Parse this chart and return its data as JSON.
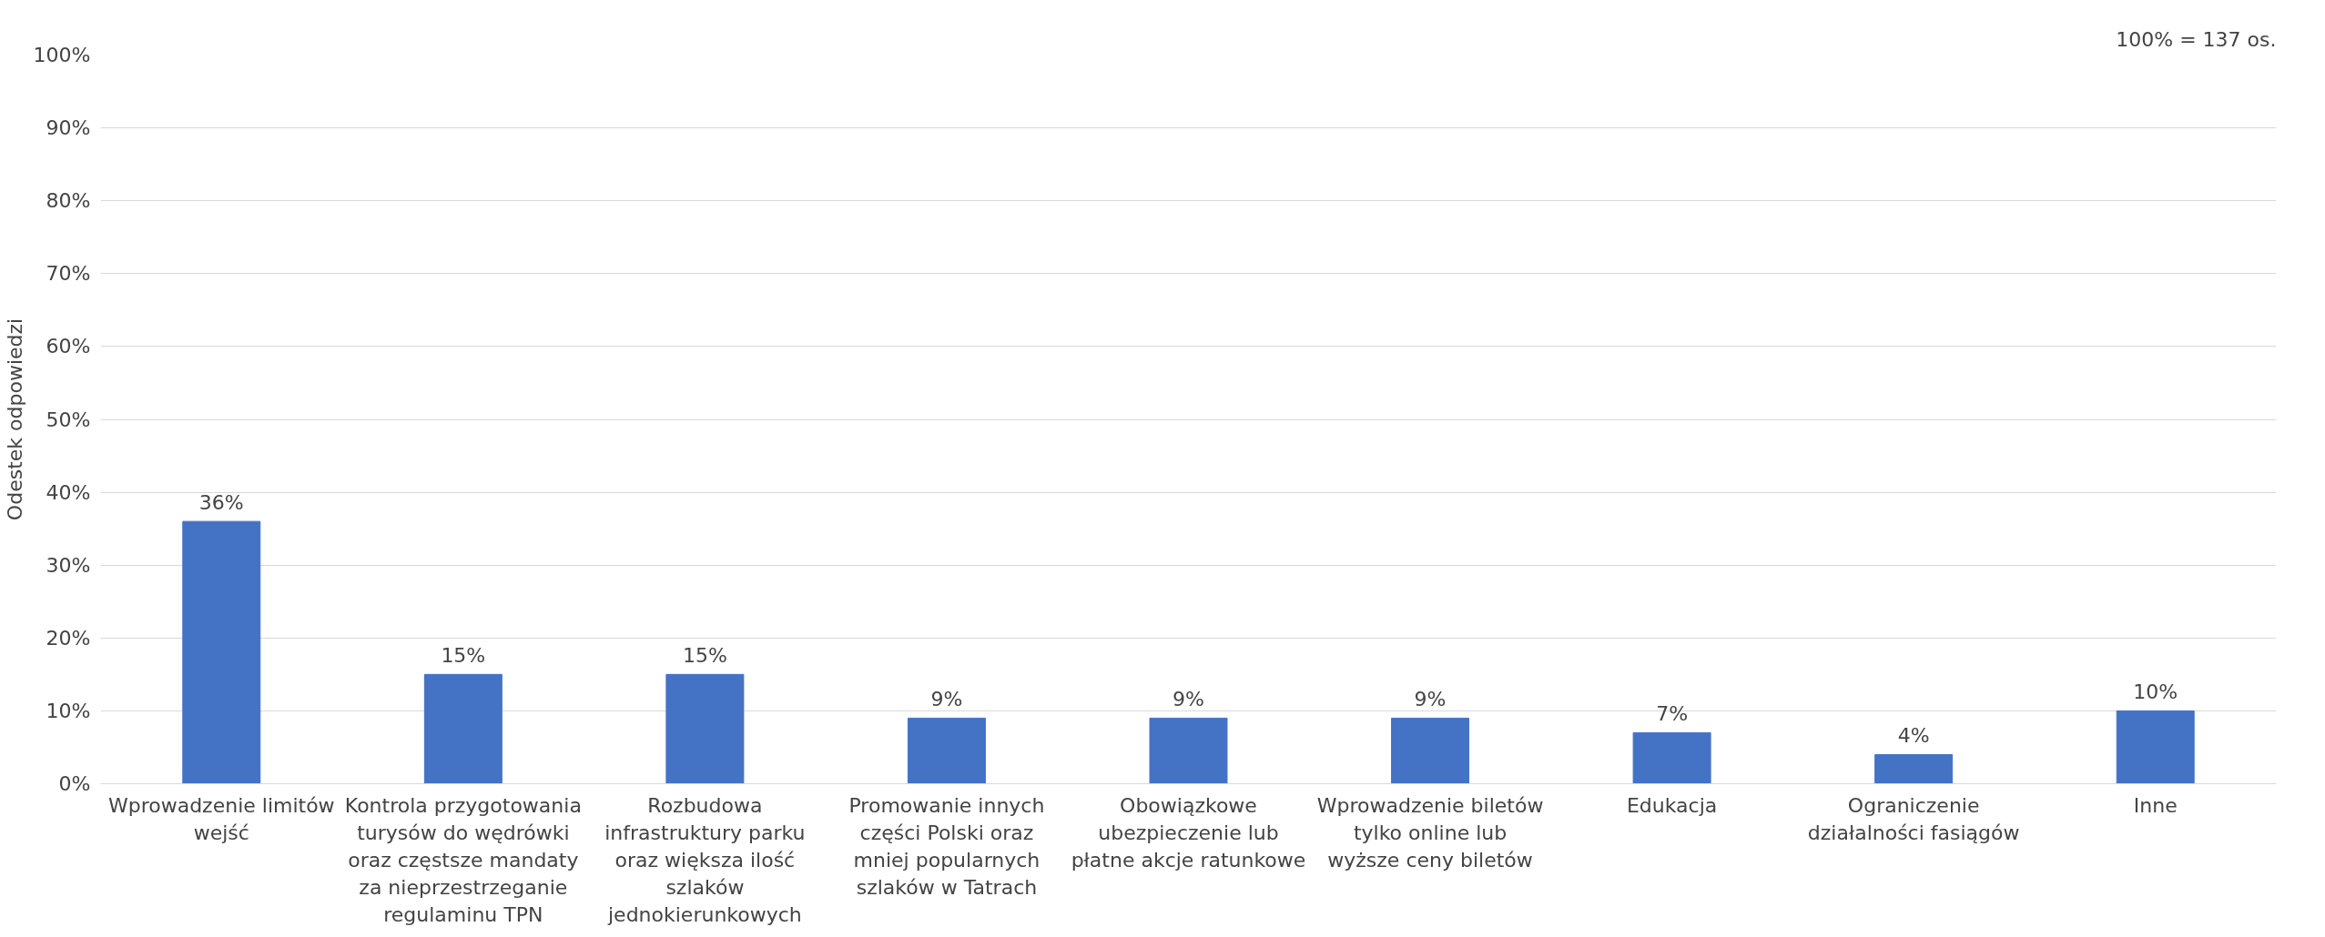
{
  "chart_data": {
    "type": "bar",
    "ylabel": "Odestek odpowiedzi",
    "annotations": [
      "100% = 137 os."
    ],
    "categories": [
      "Wprowadzenie limitów wejść",
      "Kontrola przygotowania turysów do wędrówki oraz częstsze mandaty za nieprzestrzeganie regulaminu TPN",
      "Rozbudowa infrastruktury parku oraz większa ilość szlaków jednokierunkowych",
      "Promowanie innych części Polski oraz mniej popularnych szlaków w Tatrach",
      "Obowiązkowe ubezpieczenie lub płatne akcje ratunkowe",
      "Wprowadzenie biletów tylko online lub wyższe ceny biletów",
      "Edukacja",
      "Ograniczenie działalności fasiągów",
      "Inne"
    ],
    "values": [
      36,
      15,
      15,
      9,
      9,
      9,
      7,
      4,
      10
    ],
    "value_labels": [
      "36%",
      "15%",
      "15%",
      "9%",
      "9%",
      "9%",
      "7%",
      "4%",
      "10%"
    ],
    "color": "#4472c4",
    "ylim": [
      0,
      100
    ],
    "yticks": [
      {
        "value": 0,
        "label": "0%"
      },
      {
        "value": 10,
        "label": "10%"
      },
      {
        "value": 20,
        "label": "20%"
      },
      {
        "value": 30,
        "label": "30%"
      },
      {
        "value": 40,
        "label": "40%"
      },
      {
        "value": 50,
        "label": "50%"
      },
      {
        "value": 60,
        "label": "60%"
      },
      {
        "value": 70,
        "label": "70%"
      },
      {
        "value": 80,
        "label": "80%"
      },
      {
        "value": 90,
        "label": "90%"
      },
      {
        "value": 100,
        "label": "100%"
      }
    ],
    "grid": "y"
  }
}
